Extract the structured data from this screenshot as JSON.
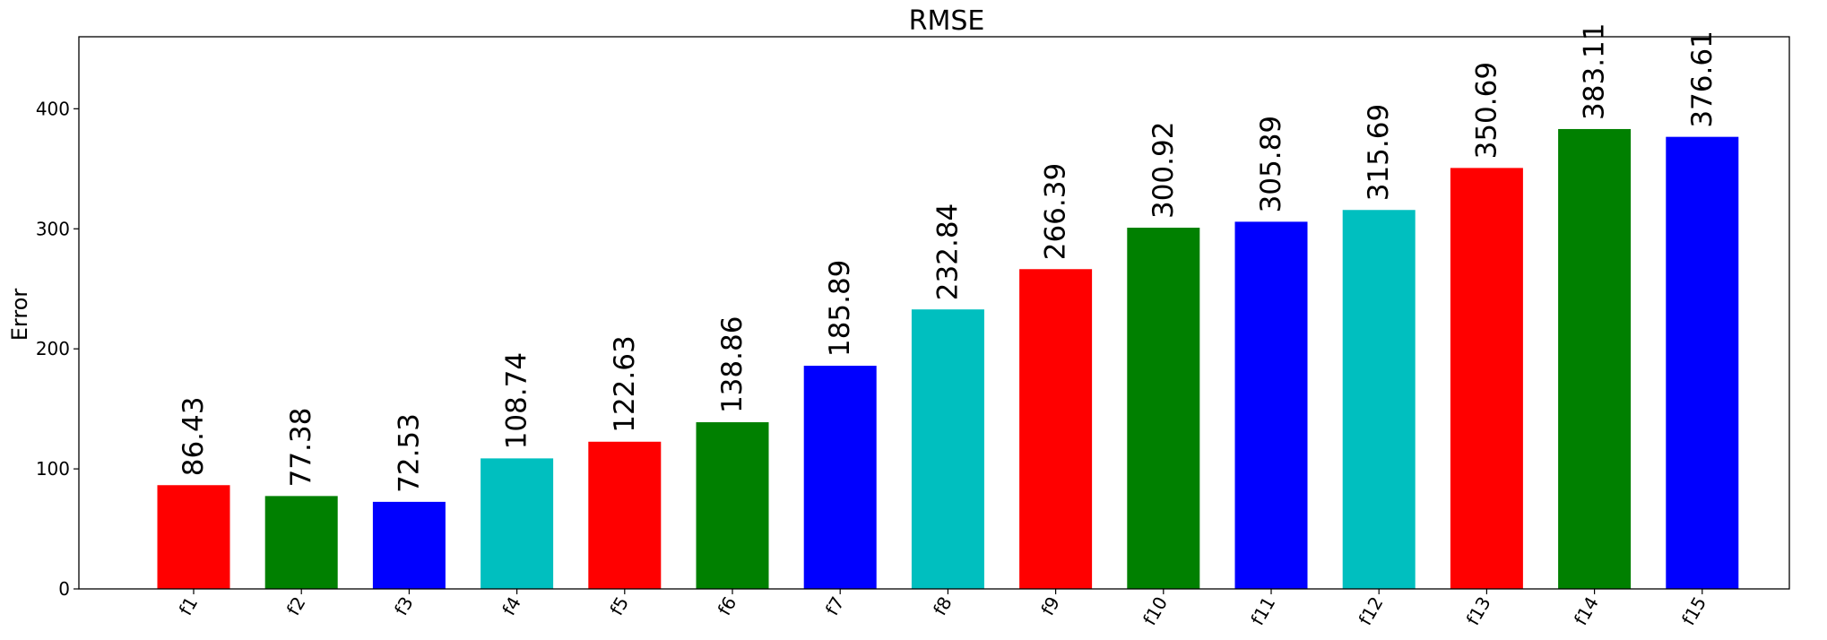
{
  "chart_data": {
    "type": "bar",
    "title": "RMSE",
    "xlabel": "",
    "ylabel": "Error",
    "ylim": [
      0,
      460
    ],
    "yticks": [
      0,
      100,
      200,
      300,
      400
    ],
    "grid": false,
    "categories": [
      "f1",
      "f2",
      "f3",
      "f4",
      "f5",
      "f6",
      "f7",
      "f8",
      "f9",
      "f10",
      "f11",
      "f12",
      "f13",
      "f14",
      "f15"
    ],
    "values": [
      86.43,
      77.38,
      72.53,
      108.74,
      122.63,
      138.86,
      185.89,
      232.84,
      266.39,
      300.92,
      305.89,
      315.69,
      350.69,
      383.11,
      376.61
    ],
    "data_labels": [
      "86.43",
      "77.38",
      "72.53",
      "108.74",
      "122.63",
      "138.86",
      "185.89",
      "232.84",
      "266.39",
      "300.92",
      "305.89",
      "315.69",
      "350.69",
      "383.11",
      "376.61"
    ],
    "colors": [
      "#ff0000",
      "#008000",
      "#0000ff",
      "#00bfbf",
      "#ff0000",
      "#008000",
      "#0000ff",
      "#00bfbf",
      "#ff0000",
      "#008000",
      "#0000ff",
      "#00bfbf",
      "#ff0000",
      "#008000",
      "#0000ff"
    ]
  }
}
